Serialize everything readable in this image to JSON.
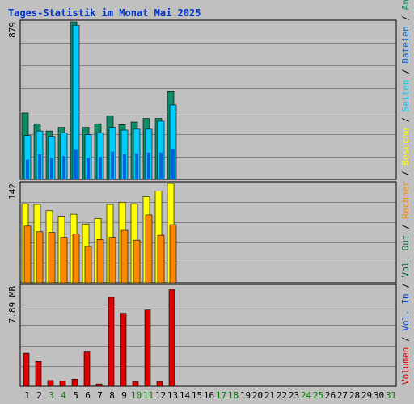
{
  "title": "Tages-Statistik im Monat Mai 2025",
  "colors": {
    "background": "#c0c0c0",
    "panel_bg": "#c0c0c0",
    "grid": "#808080",
    "title": "#0033cc",
    "anfragen": "#0f8a66",
    "dateien": "#00ccff",
    "seiten": "#0066dd",
    "besuche": "#ffff00",
    "rechner": "#ff8800",
    "vol_out": "#006633",
    "vol_in": "#0044cc",
    "volumen": "#dd0000",
    "weekday": "#000000",
    "weekend": "#008000"
  },
  "side_label": {
    "parts": [
      {
        "text": "Volumen",
        "color_key": "volumen"
      },
      {
        "text": " / ",
        "color_key": "weekday"
      },
      {
        "text": "Vol. In",
        "color_key": "vol_in"
      },
      {
        "text": " / ",
        "color_key": "weekday"
      },
      {
        "text": "Vol. Out",
        "color_key": "vol_out"
      },
      {
        "text": " / ",
        "color_key": "weekday"
      },
      {
        "text": "Rechner",
        "color_key": "rechner"
      },
      {
        "text": " / ",
        "color_key": "weekday"
      },
      {
        "text": "Besuche",
        "color_key": "besuche"
      },
      {
        "text": " / ",
        "color_key": "weekday"
      },
      {
        "text": "Seiten",
        "color_key": "dateien"
      },
      {
        "text": " / ",
        "color_key": "weekday"
      },
      {
        "text": "Dateien",
        "color_key": "seiten"
      },
      {
        "text": " / ",
        "color_key": "weekday"
      },
      {
        "text": "Anfragen",
        "color_key": "anfragen"
      }
    ]
  },
  "chart_data": [
    {
      "type": "bar",
      "panel": "top",
      "max_label": "879",
      "ylim": [
        0,
        879
      ],
      "x": [
        1,
        2,
        3,
        4,
        5,
        6,
        7,
        8,
        9,
        10,
        11,
        12,
        13
      ],
      "series": [
        {
          "name": "Anfragen",
          "values": [
            370,
            310,
            270,
            290,
            879,
            290,
            310,
            355,
            305,
            320,
            340,
            340,
            490
          ]
        },
        {
          "name": "Dateien",
          "values": [
            245,
            270,
            240,
            260,
            860,
            250,
            260,
            290,
            275,
            280,
            280,
            325,
            415
          ]
        },
        {
          "name": "Seiten",
          "values": [
            110,
            140,
            120,
            130,
            165,
            120,
            125,
            155,
            140,
            145,
            150,
            150,
            170
          ]
        }
      ]
    },
    {
      "type": "bar",
      "panel": "middle",
      "max_label": "142",
      "ylim": [
        0,
        142
      ],
      "x": [
        1,
        2,
        3,
        4,
        5,
        6,
        7,
        8,
        9,
        10,
        11,
        12,
        13
      ],
      "series": [
        {
          "name": "Besuche",
          "values": [
            113,
            112,
            103,
            95,
            98,
            84,
            92,
            112,
            115,
            113,
            123,
            131,
            142
          ]
        },
        {
          "name": "Rechner",
          "values": [
            81,
            73,
            72,
            65,
            70,
            52,
            62,
            65,
            75,
            61,
            97,
            68,
            83
          ]
        }
      ]
    },
    {
      "type": "bar",
      "panel": "bottom",
      "max_label": "7.89 MB",
      "ylim": [
        0,
        7.89
      ],
      "x": [
        1,
        2,
        3,
        4,
        5,
        6,
        7,
        8,
        9,
        10,
        11,
        12,
        13
      ],
      "series": [
        {
          "name": "Volumen",
          "values": [
            2.6,
            1.95,
            0.45,
            0.4,
            0.55,
            2.7,
            0.18,
            7.0,
            5.75,
            0.35,
            6.0,
            0.35,
            7.6
          ]
        }
      ]
    }
  ],
  "x_axis": {
    "labels": [
      "1",
      "2",
      "3",
      "4",
      "5",
      "6",
      "7",
      "8",
      "9",
      "10",
      "11",
      "12",
      "13",
      "14",
      "15",
      "16",
      "17",
      "18",
      "19",
      "20",
      "21",
      "22",
      "23",
      "24",
      "25",
      "26",
      "27",
      "28",
      "29",
      "30",
      "31"
    ],
    "weekend_days": [
      3,
      4,
      10,
      11,
      17,
      18,
      24,
      25,
      31
    ]
  }
}
